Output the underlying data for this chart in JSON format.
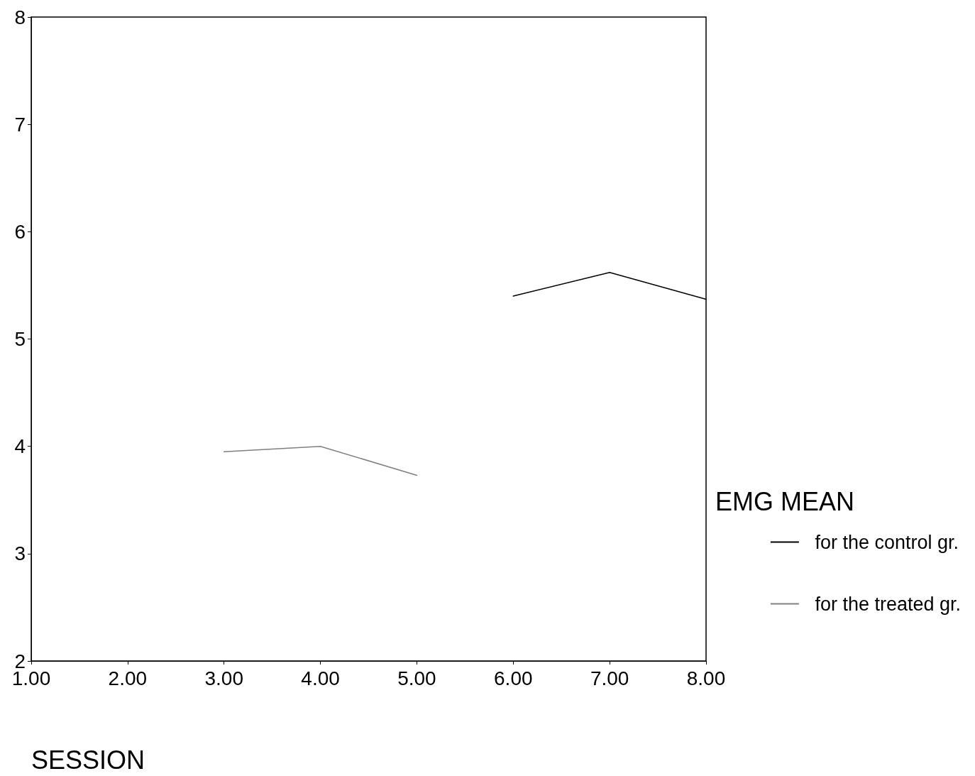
{
  "chart_data": {
    "type": "line",
    "xlabel": "SESSION",
    "legend_title": "EMG MEAN",
    "series": [
      {
        "name": "for the control gr.",
        "color": "#000000",
        "x": [
          6,
          7,
          8
        ],
        "values": [
          5.4,
          5.62,
          5.37
        ]
      },
      {
        "name": "for the treated gr.",
        "color": "#808080",
        "x": [
          3,
          4,
          5
        ],
        "values": [
          3.95,
          4.0,
          3.73
        ]
      }
    ],
    "xlim": [
      1,
      8
    ],
    "xticks": [
      {
        "value": 1,
        "label": "1.00"
      },
      {
        "value": 2,
        "label": "2.00"
      },
      {
        "value": 3,
        "label": "3.00"
      },
      {
        "value": 4,
        "label": "4.00"
      },
      {
        "value": 5,
        "label": "5.00"
      },
      {
        "value": 6,
        "label": "6.00"
      },
      {
        "value": 7,
        "label": "7.00"
      },
      {
        "value": 8,
        "label": "8.00"
      }
    ],
    "ylim": [
      2,
      8
    ],
    "yticks": [
      2,
      3,
      4,
      5,
      6,
      7,
      8
    ],
    "grid": false,
    "legend": "right",
    "marker": "none",
    "line_style": "solid"
  }
}
